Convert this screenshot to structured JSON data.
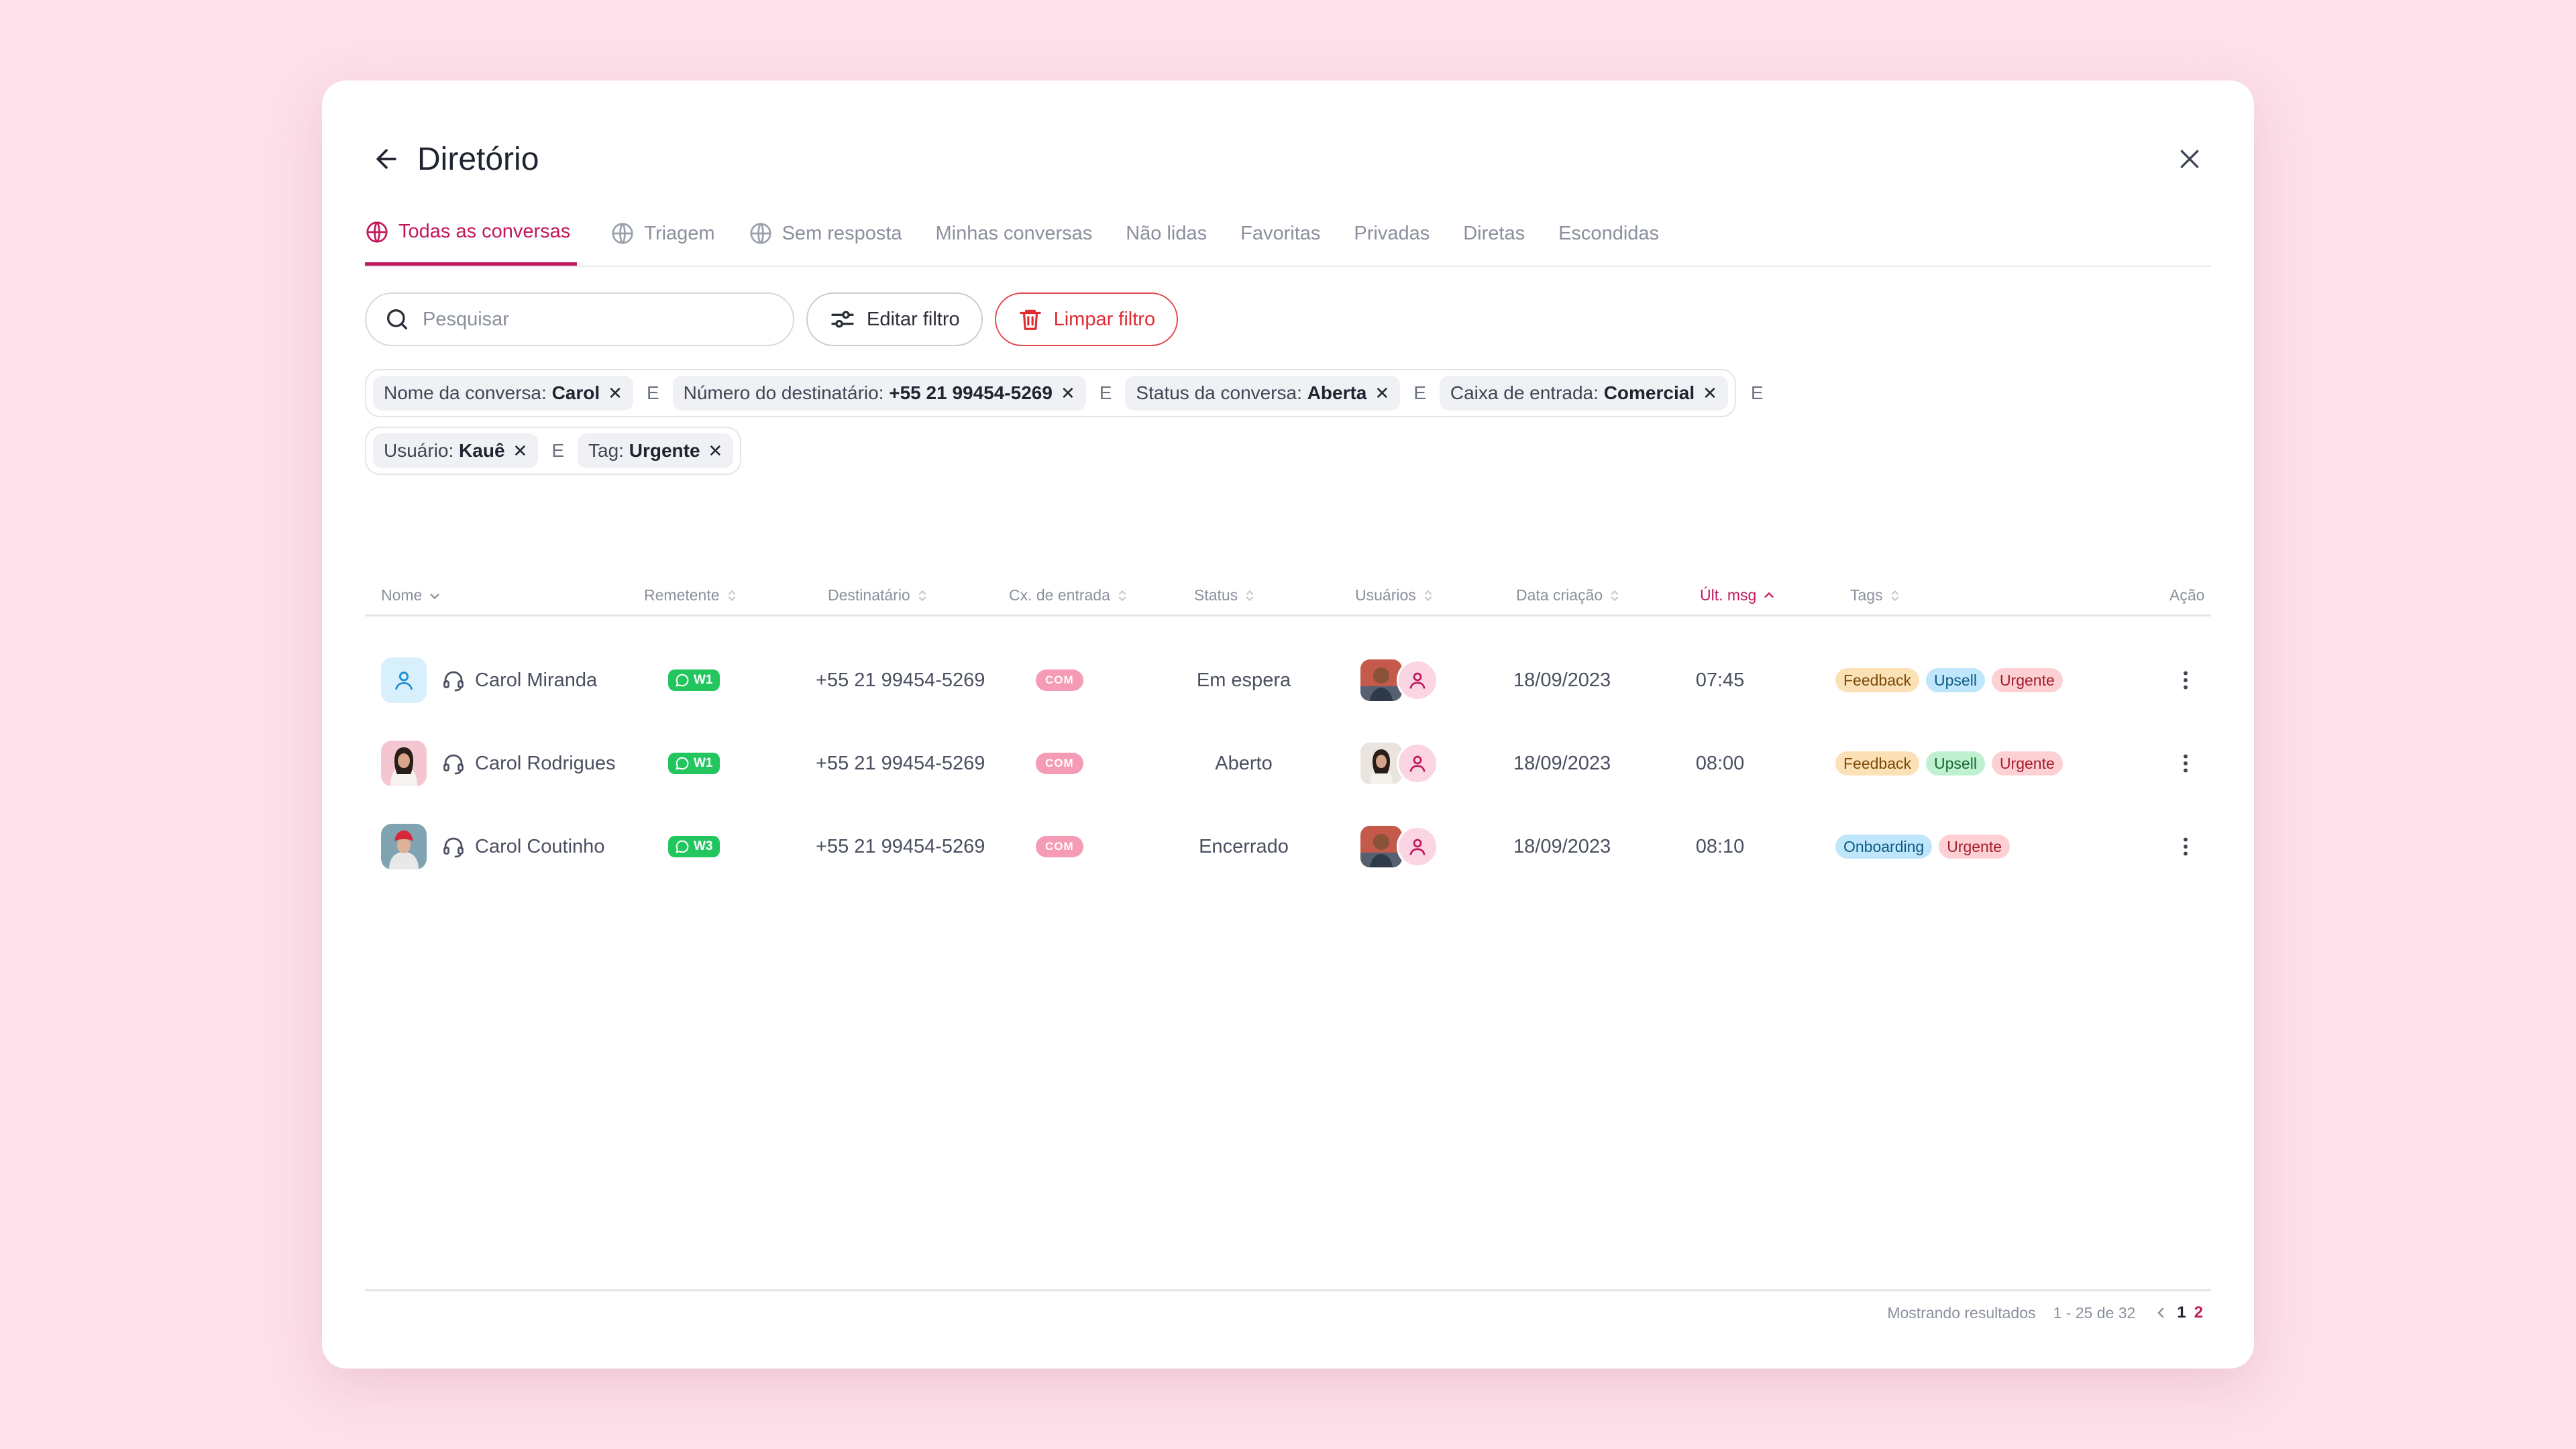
{
  "header": {
    "title": "Diretório"
  },
  "tabs": [
    {
      "label": "Todas as conversas",
      "icon": "globe-icon",
      "active": true
    },
    {
      "label": "Triagem",
      "icon": "globe-icon"
    },
    {
      "label": "Sem resposta",
      "icon": "globe-icon"
    },
    {
      "label": "Minhas conversas"
    },
    {
      "label": "Não lidas"
    },
    {
      "label": "Favoritas"
    },
    {
      "label": "Privadas"
    },
    {
      "label": "Diretas"
    },
    {
      "label": "Escondidas"
    }
  ],
  "toolbar": {
    "search_placeholder": "Pesquisar",
    "edit_label": "Editar filtro",
    "clear_label": "Limpar filtro"
  },
  "filters": {
    "conjunction": "E",
    "chips": [
      {
        "label": "Nome da conversa:",
        "value": "Carol"
      },
      {
        "label": "Número do destinatário:",
        "value": "+55 21 99454-5269"
      },
      {
        "label": "Status da conversa:",
        "value": "Aberta"
      },
      {
        "label": "Caixa de entrada:",
        "value": "Comercial"
      },
      {
        "label": "Usuário:",
        "value": "Kauê"
      },
      {
        "label": "Tag:",
        "value": "Urgente"
      }
    ]
  },
  "table": {
    "columns": {
      "nome": "Nome",
      "remetente": "Remetente",
      "destinatario": "Destinatário",
      "caixa": "Cx. de entrada",
      "status": "Status",
      "usuarios": "Usuários",
      "data": "Data criação",
      "ult": "Últ. msg",
      "tags": "Tags",
      "acao": "Ação"
    },
    "rows": [
      {
        "name": "Carol Miranda",
        "sender": "W1",
        "recipient": "+55 21 99454-5269",
        "inbox": "COM",
        "status": "Em espera",
        "date": "18/09/2023",
        "last": "07:45",
        "tags": [
          "Feedback",
          "Upsell",
          "Urgente"
        ]
      },
      {
        "name": "Carol Rodrigues",
        "sender": "W1",
        "recipient": "+55 21 99454-5269",
        "inbox": "COM",
        "status": "Aberto",
        "date": "18/09/2023",
        "last": "08:00",
        "tags": [
          "Feedback",
          "Upsell",
          "Urgente"
        ]
      },
      {
        "name": "Carol Coutinho",
        "sender": "W3",
        "recipient": "+55 21 99454-5269",
        "inbox": "COM",
        "status": "Encerrado",
        "date": "18/09/2023",
        "last": "08:10",
        "tags": [
          "Onboarding",
          "Urgente"
        ]
      }
    ]
  },
  "footer": {
    "results_label": "Mostrando resultados",
    "range": "1 - 25 de 32",
    "pages": [
      "1",
      "2"
    ]
  },
  "colors": {
    "accent": "#c2185b",
    "danger": "#e02c33",
    "whatsapp": "#22c55e",
    "background": "#fde0ea"
  }
}
